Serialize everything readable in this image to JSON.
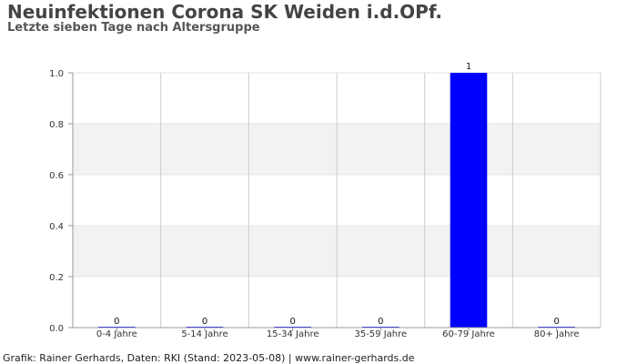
{
  "header": {
    "title": "Neuinfektionen Corona SK Weiden i.d.OPf.",
    "subtitle": "Letzte sieben Tage nach Altersgruppe"
  },
  "footer": {
    "credit": "Grafik: Rainer Gerhards, Daten: RKI (Stand: 2023-05-08) | www.rainer-gerhards.de"
  },
  "chart_data": {
    "type": "bar",
    "title": "Neuinfektionen Corona SK Weiden i.d.OPf.",
    "subtitle": "Letzte sieben Tage nach Altersgruppe",
    "xlabel": "",
    "ylabel": "",
    "categories": [
      "0-4 Jahre",
      "5-14 Jahre",
      "15-34 Jahre",
      "35-59 Jahre",
      "60-79 Jahre",
      "80+ Jahre"
    ],
    "values": [
      0,
      0,
      0,
      0,
      1,
      0
    ],
    "data_labels": [
      "0",
      "0",
      "0",
      "0",
      "1",
      "0"
    ],
    "ylim": [
      0,
      1.0
    ],
    "yticks": [
      "0.0",
      "0.2",
      "0.4",
      "0.6",
      "0.8",
      "1.0"
    ],
    "grid": true,
    "legend": "none",
    "colors": {
      "bar": "#0000ff",
      "band": "#f2f2f2",
      "grid": "#cccccc",
      "axis": "#999999"
    }
  }
}
